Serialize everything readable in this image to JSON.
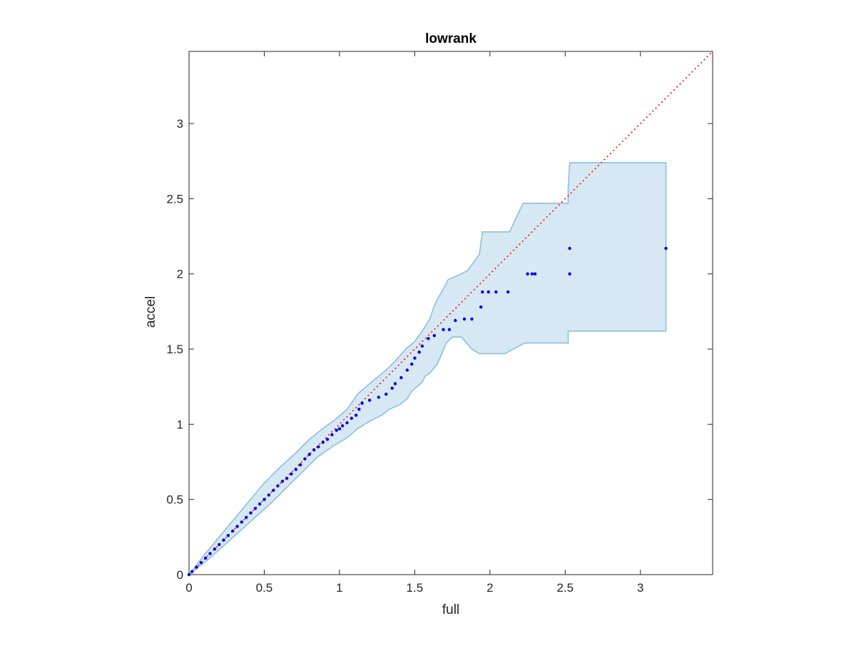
{
  "chart_data": {
    "type": "scatter",
    "title": "lowrank",
    "xlabel": "full",
    "ylabel": "accel",
    "xlim": [
      0,
      3.48
    ],
    "ylim": [
      0,
      3.48
    ],
    "xticks": [
      0,
      0.5,
      1,
      1.5,
      2,
      2.5,
      3
    ],
    "xtick_labels": [
      "0",
      "0.5",
      "1",
      "1.5",
      "2",
      "2.5",
      "3"
    ],
    "yticks": [
      0,
      0.5,
      1,
      1.5,
      2,
      2.5,
      3
    ],
    "ytick_labels": [
      "0",
      "0.5",
      "1",
      "1.5",
      "2",
      "2.5",
      "3"
    ],
    "grid": false,
    "box": true,
    "colors": {
      "points": "#0000ee",
      "reference_line": "#ff0000",
      "band_fill": "#d6e8f4",
      "band_edge": "#8cbfdd",
      "axes": "#262626"
    },
    "reference_line": {
      "style": "dotted",
      "from": [
        0,
        0
      ],
      "to": [
        3.48,
        3.48
      ]
    },
    "band": {
      "upper": [
        [
          0,
          0
        ],
        [
          0.1,
          0.13
        ],
        [
          0.2,
          0.25
        ],
        [
          0.3,
          0.37
        ],
        [
          0.4,
          0.49
        ],
        [
          0.5,
          0.61
        ],
        [
          0.6,
          0.71
        ],
        [
          0.7,
          0.8
        ],
        [
          0.8,
          0.9
        ],
        [
          0.9,
          0.98
        ],
        [
          0.97,
          1.03
        ],
        [
          1.05,
          1.1
        ],
        [
          1.12,
          1.2
        ],
        [
          1.2,
          1.27
        ],
        [
          1.26,
          1.32
        ],
        [
          1.31,
          1.36
        ],
        [
          1.37,
          1.42
        ],
        [
          1.44,
          1.5
        ],
        [
          1.5,
          1.55
        ],
        [
          1.55,
          1.62
        ],
        [
          1.6,
          1.7
        ],
        [
          1.63,
          1.79
        ],
        [
          1.65,
          1.83
        ],
        [
          1.69,
          1.9
        ],
        [
          1.72,
          1.96
        ],
        [
          1.85,
          2.02
        ],
        [
          1.93,
          2.13
        ],
        [
          1.95,
          2.28
        ],
        [
          2.13,
          2.28
        ],
        [
          2.22,
          2.47
        ],
        [
          2.52,
          2.47
        ],
        [
          2.52,
          2.57
        ],
        [
          2.53,
          2.74
        ],
        [
          3.17,
          2.74
        ]
      ],
      "lower": [
        [
          3.17,
          1.62
        ],
        [
          2.52,
          1.62
        ],
        [
          2.52,
          1.54
        ],
        [
          2.23,
          1.54
        ],
        [
          2.1,
          1.47
        ],
        [
          1.93,
          1.47
        ],
        [
          1.88,
          1.5
        ],
        [
          1.81,
          1.58
        ],
        [
          1.75,
          1.58
        ],
        [
          1.71,
          1.54
        ],
        [
          1.65,
          1.4
        ],
        [
          1.6,
          1.34
        ],
        [
          1.57,
          1.32
        ],
        [
          1.55,
          1.28
        ],
        [
          1.48,
          1.22
        ],
        [
          1.45,
          1.17
        ],
        [
          1.4,
          1.13
        ],
        [
          1.33,
          1.1
        ],
        [
          1.28,
          1.06
        ],
        [
          1.2,
          1.02
        ],
        [
          1.12,
          0.97
        ],
        [
          1.05,
          0.91
        ],
        [
          0.95,
          0.85
        ],
        [
          0.85,
          0.78
        ],
        [
          0.75,
          0.68
        ],
        [
          0.65,
          0.58
        ],
        [
          0.55,
          0.48
        ],
        [
          0.45,
          0.39
        ],
        [
          0.35,
          0.3
        ],
        [
          0.25,
          0.21
        ],
        [
          0.15,
          0.12
        ],
        [
          0.05,
          0.04
        ],
        [
          0,
          0
        ]
      ]
    },
    "points": [
      [
        0.0,
        0.0
      ],
      [
        0.02,
        0.02
      ],
      [
        0.05,
        0.05
      ],
      [
        0.08,
        0.08
      ],
      [
        0.11,
        0.11
      ],
      [
        0.14,
        0.14
      ],
      [
        0.17,
        0.17
      ],
      [
        0.2,
        0.2
      ],
      [
        0.23,
        0.23
      ],
      [
        0.26,
        0.26
      ],
      [
        0.29,
        0.29
      ],
      [
        0.32,
        0.32
      ],
      [
        0.35,
        0.35
      ],
      [
        0.38,
        0.38
      ],
      [
        0.41,
        0.41
      ],
      [
        0.44,
        0.44
      ],
      [
        0.47,
        0.47
      ],
      [
        0.5,
        0.5
      ],
      [
        0.53,
        0.53
      ],
      [
        0.56,
        0.56
      ],
      [
        0.59,
        0.59
      ],
      [
        0.62,
        0.62
      ],
      [
        0.65,
        0.64
      ],
      [
        0.68,
        0.67
      ],
      [
        0.71,
        0.7
      ],
      [
        0.74,
        0.73
      ],
      [
        0.77,
        0.77
      ],
      [
        0.8,
        0.8
      ],
      [
        0.83,
        0.83
      ],
      [
        0.86,
        0.85
      ],
      [
        0.89,
        0.88
      ],
      [
        0.92,
        0.9
      ],
      [
        0.95,
        0.93
      ],
      [
        0.98,
        0.96
      ],
      [
        1.0,
        0.97
      ],
      [
        1.02,
        0.99
      ],
      [
        1.05,
        1.01
      ],
      [
        1.08,
        1.04
      ],
      [
        1.11,
        1.06
      ],
      [
        1.13,
        1.1
      ],
      [
        1.15,
        1.14
      ],
      [
        1.2,
        1.16
      ],
      [
        1.26,
        1.18
      ],
      [
        1.31,
        1.2
      ],
      [
        1.35,
        1.24
      ],
      [
        1.37,
        1.27
      ],
      [
        1.41,
        1.31
      ],
      [
        1.45,
        1.36
      ],
      [
        1.48,
        1.4
      ],
      [
        1.5,
        1.44
      ],
      [
        1.53,
        1.48
      ],
      [
        1.55,
        1.52
      ],
      [
        1.59,
        1.57
      ],
      [
        1.63,
        1.59
      ],
      [
        1.69,
        1.63
      ],
      [
        1.73,
        1.63
      ],
      [
        1.77,
        1.69
      ],
      [
        1.83,
        1.7
      ],
      [
        1.88,
        1.7
      ],
      [
        1.94,
        1.78
      ],
      [
        1.95,
        1.88
      ],
      [
        1.99,
        1.88
      ],
      [
        2.04,
        1.88
      ],
      [
        2.12,
        1.88
      ],
      [
        2.25,
        2.0
      ],
      [
        2.28,
        2.0
      ],
      [
        2.3,
        2.0
      ],
      [
        2.53,
        2.0
      ],
      [
        2.53,
        2.17
      ],
      [
        3.17,
        2.17
      ]
    ]
  }
}
